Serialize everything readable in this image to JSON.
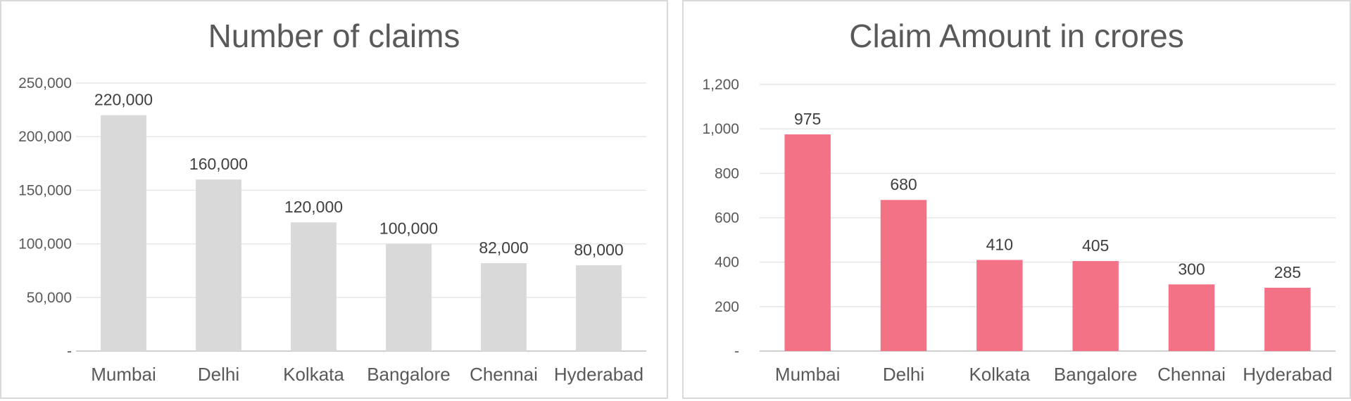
{
  "chart_data": [
    {
      "type": "bar",
      "title": "Number of claims",
      "categories": [
        "Mumbai",
        "Delhi",
        "Kolkata",
        "Bangalore",
        "Chennai",
        "Hyderabad"
      ],
      "values": [
        220000,
        160000,
        120000,
        100000,
        82000,
        80000
      ],
      "data_labels": [
        "220,000",
        "160,000",
        "120,000",
        "100,000",
        "82,000",
        "80,000"
      ],
      "yticks": [
        "-",
        "50,000",
        "100,000",
        "150,000",
        "200,000",
        "250,000"
      ],
      "ylim": [
        0,
        250000
      ],
      "bar_color": "#d9d9d9",
      "grid": true,
      "legend": "none"
    },
    {
      "type": "bar",
      "title": "Claim Amount in crores",
      "categories": [
        "Mumbai",
        "Delhi",
        "Kolkata",
        "Bangalore",
        "Chennai",
        "Hyderabad"
      ],
      "values": [
        975,
        680,
        410,
        405,
        300,
        285
      ],
      "data_labels": [
        "975",
        "680",
        "410",
        "405",
        "300",
        "285"
      ],
      "yticks": [
        "-",
        "200",
        "400",
        "600",
        "800",
        "1,000",
        "1,200"
      ],
      "ylim": [
        0,
        1200
      ],
      "bar_color": "#f47286",
      "grid": true,
      "legend": "none"
    }
  ]
}
